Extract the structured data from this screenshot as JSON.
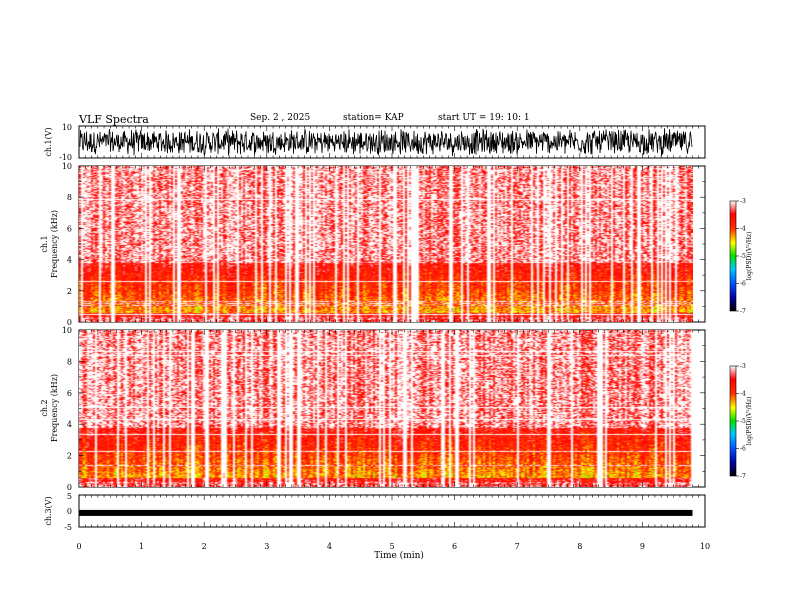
{
  "header": {
    "title": "VLF Spectra",
    "date": "Sep. 2 , 2025",
    "station": "station= KAP",
    "start_ut": "start UT =   19: 10: 1"
  },
  "chart_data": [
    {
      "type": "line",
      "id": "ch1-waveform",
      "ylabel": "ch.1(V)",
      "ylim": [
        -10,
        10
      ],
      "y_ticks": [
        "10",
        "-10"
      ],
      "description_series": "waveform amplitude, range approximately -9 to 9",
      "x_range_min": [
        0,
        9.8
      ]
    },
    {
      "type": "heatmap",
      "id": "ch1-spectrogram",
      "ylabel_line1": "ch.1",
      "ylabel_line2": "Frequency (kHz)",
      "ylim": [
        0,
        10
      ],
      "y_ticks": [
        "0",
        "2",
        "4",
        "6",
        "8",
        "10"
      ],
      "x_range_min": [
        0,
        9.8
      ],
      "colorbar": {
        "label": "log(PSD)(V²/Hz)",
        "range": [
          -7,
          -3
        ],
        "ticks": [
          "-3",
          "-4",
          "-5",
          "-6",
          "-7"
        ]
      }
    },
    {
      "type": "heatmap",
      "id": "ch2-spectrogram",
      "ylabel_line1": "ch.2",
      "ylabel_line2": "Frequency (kHz)",
      "ylim": [
        0,
        10
      ],
      "y_ticks": [
        "0",
        "2",
        "4",
        "6",
        "8",
        "10"
      ],
      "x_range_min": [
        0,
        9.8
      ],
      "colorbar": {
        "label": "log(PSD)(V²/Hz)",
        "range": [
          -7,
          -3
        ],
        "ticks": [
          "-3",
          "-4",
          "-5",
          "-6",
          "-7"
        ]
      }
    },
    {
      "type": "line",
      "id": "ch3-waveform",
      "ylabel": "ch.3(V)",
      "ylim": [
        -5,
        5
      ],
      "y_ticks": [
        "5",
        "0",
        "-5"
      ],
      "level": -0.6,
      "x_range_min": [
        0,
        9.8
      ]
    }
  ],
  "xaxis": {
    "label": "Time (min)",
    "range": [
      0,
      10
    ],
    "ticks": [
      "0",
      "1",
      "2",
      "3",
      "4",
      "5",
      "6",
      "7",
      "8",
      "9",
      "10"
    ]
  }
}
